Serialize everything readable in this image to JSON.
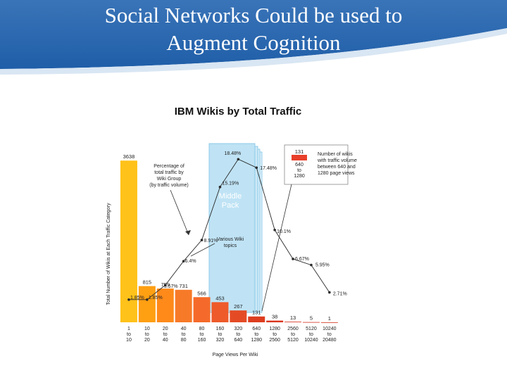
{
  "slide": {
    "title_line1": "Social Networks Could be used to",
    "title_line2": "Augment Cognition"
  },
  "chart_data": {
    "type": "bar",
    "title": "IBM Wikis by Total Traffic",
    "xlabel": "Page Views Per Wiki",
    "ylabel": "Total Number of Wikis at Each Traffic Category",
    "categories": [
      [
        "1",
        "to",
        "10"
      ],
      [
        "10",
        "to",
        "20"
      ],
      [
        "20",
        "to",
        "40"
      ],
      [
        "40",
        "to",
        "80"
      ],
      [
        "80",
        "to",
        "160"
      ],
      [
        "160",
        "to",
        "320"
      ],
      [
        "320",
        "to",
        "640"
      ],
      [
        "640",
        "to",
        "1280"
      ],
      [
        "1280",
        "to",
        "2560"
      ],
      [
        "2560",
        "to",
        "5120"
      ],
      [
        "5120",
        "to",
        "10240"
      ],
      [
        "10240",
        "to",
        "20480"
      ]
    ],
    "values": [
      3638,
      815,
      759,
      731,
      566,
      453,
      267,
      131,
      38,
      13,
      5,
      1
    ],
    "value_labels": [
      "3638",
      "815",
      "759",
      "731",
      "566",
      "453",
      "267",
      "131",
      "38",
      "13",
      "5",
      "1"
    ],
    "traffic_share_series": {
      "name": "Percentage of total traffic by Wiki Group (by traffic volume)",
      "values": [
        1.85,
        1.85,
        3.57,
        6.4,
        8.91,
        15.19,
        18.48,
        17.48,
        10.1,
        6.67,
        5.95,
        2.71
      ],
      "labels": [
        "1.85%",
        "1.85%",
        "3.57%",
        "6.4%",
        "8.91%",
        "15.19%",
        "18.48%",
        "17.48%",
        "10.1%",
        "6.67%",
        "5.95%",
        "2.71%"
      ]
    },
    "highlight": {
      "label_lines": [
        "Middle",
        "Pack"
      ],
      "categories": [
        "160 to 320",
        "320 to 640",
        "640 to 1280"
      ],
      "note_lines": [
        "Various Wiki",
        "topics"
      ]
    },
    "annotation_pct": {
      "lines": [
        "Percentage of",
        "total traffic by",
        "Wiki Group",
        "(by traffic volume)"
      ]
    },
    "legend": {
      "placement": "top-right",
      "value": "131",
      "range_lines": [
        "640",
        "to",
        "1280"
      ],
      "text_lines": [
        "Number of wikis",
        "with traffic volume",
        "between 640 and",
        "1280 page views"
      ]
    },
    "colors": {
      "bar_gradient": [
        "#ffc21a",
        "#ff9f12",
        "#ff8a1a",
        "#f77a28",
        "#f56a2a",
        "#ee5a2a",
        "#e44b25",
        "#dd3d1f",
        "#d9341d",
        "#d6301b",
        "#d42e1a",
        "#d02a18"
      ],
      "middle_pack": "#bfe3f5",
      "middle_pack_edge": "#7bc3e6",
      "legend_swatch": "#e8402a"
    }
  }
}
